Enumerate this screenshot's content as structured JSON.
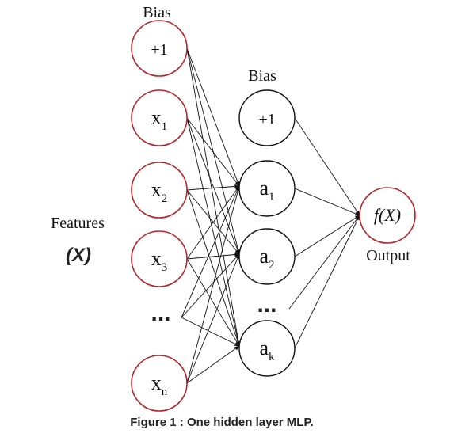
{
  "input_bias_heading": "Bias",
  "hidden_bias_heading": "Bias",
  "features_label": "Features",
  "features_symbol": "(X)",
  "output_label": "Output",
  "caption": "Figure 1 : One hidden layer MLP.",
  "input_layer": [
    {
      "id": "in_bias",
      "base": "+1",
      "sub": ""
    },
    {
      "id": "x1",
      "base": "x",
      "sub": "1"
    },
    {
      "id": "x2",
      "base": "x",
      "sub": "2"
    },
    {
      "id": "x3",
      "base": "x",
      "sub": "3"
    },
    {
      "id": "xn",
      "base": "x",
      "sub": "n"
    }
  ],
  "input_ellipsis": "...",
  "hidden_layer": [
    {
      "id": "h_bias",
      "base": "+1",
      "sub": ""
    },
    {
      "id": "a1",
      "base": "a",
      "sub": "1"
    },
    {
      "id": "a2",
      "base": "a",
      "sub": "2"
    },
    {
      "id": "ak",
      "base": "a",
      "sub": "k"
    }
  ],
  "hidden_ellipsis": "...",
  "output_node": {
    "id": "out",
    "text": "f(X)"
  }
}
